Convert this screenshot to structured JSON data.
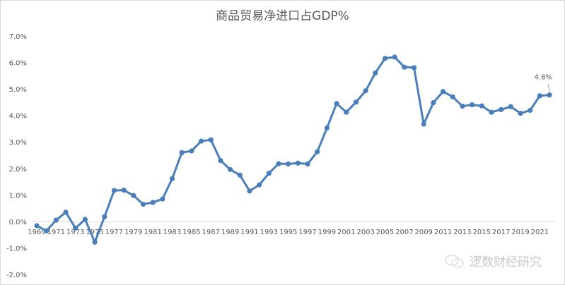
{
  "chart_data": {
    "type": "line",
    "title": "商品贸易净进口占GDP%",
    "xlabel": "",
    "ylabel": "",
    "ylim": [
      -2.0,
      7.0
    ],
    "y_ticks": [
      "-2.0%",
      "-1.0%",
      "0.0%",
      "1.0%",
      "2.0%",
      "3.0%",
      "4.0%",
      "5.0%",
      "6.0%",
      "7.0%"
    ],
    "x_tick_labels": [
      "1969",
      "1971",
      "1973",
      "1975",
      "1977",
      "1979",
      "1981",
      "1983",
      "1985",
      "1987",
      "1989",
      "1991",
      "1993",
      "1995",
      "1997",
      "1999",
      "2001",
      "2003",
      "2005",
      "2007",
      "2009",
      "2011",
      "2013",
      "2015",
      "2017",
      "2019",
      "2021"
    ],
    "grid": false,
    "series_color": "#4a7ebb",
    "x": [
      1969,
      1970,
      1971,
      1972,
      1973,
      1974,
      1975,
      1976,
      1977,
      1978,
      1979,
      1980,
      1981,
      1982,
      1983,
      1984,
      1985,
      1986,
      1987,
      1988,
      1989,
      1990,
      1991,
      1992,
      1993,
      1994,
      1995,
      1996,
      1997,
      1998,
      1999,
      2000,
      2001,
      2002,
      2003,
      2004,
      2005,
      2006,
      2007,
      2008,
      2009,
      2010,
      2011,
      2012,
      2013,
      2014,
      2015,
      2016,
      2017,
      2018,
      2019,
      2020,
      2021,
      2022
    ],
    "values": [
      -0.16,
      -0.35,
      0.05,
      0.35,
      -0.25,
      0.08,
      -0.78,
      0.18,
      1.17,
      1.18,
      0.98,
      0.65,
      0.72,
      0.85,
      1.62,
      2.6,
      2.66,
      3.03,
      3.08,
      2.3,
      1.96,
      1.75,
      1.15,
      1.38,
      1.82,
      2.18,
      2.17,
      2.2,
      2.17,
      2.63,
      3.53,
      4.45,
      4.12,
      4.5,
      4.93,
      5.6,
      6.15,
      6.2,
      5.82,
      5.8,
      3.67,
      4.48,
      4.9,
      4.7,
      4.35,
      4.4,
      4.36,
      4.12,
      4.22,
      4.33,
      4.08,
      4.19,
      4.74,
      4.77
    ],
    "annotations": [
      {
        "x": 2022,
        "text": "4.8%"
      }
    ]
  },
  "watermark": {
    "text": "逻数财经研究",
    "icon": "wechat-icon"
  }
}
